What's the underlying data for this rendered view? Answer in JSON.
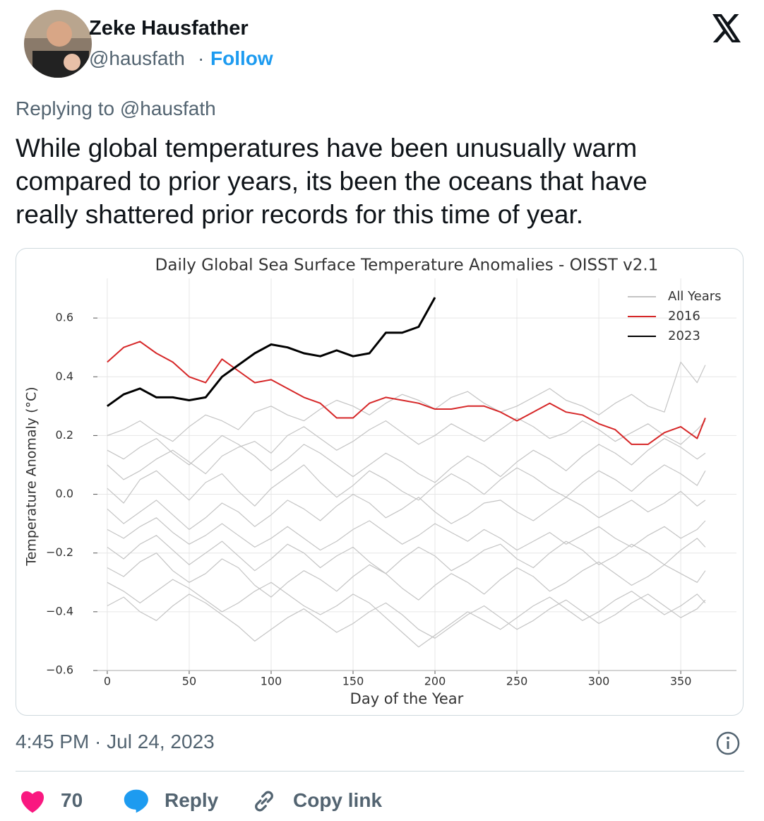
{
  "header": {
    "name": "Zeke Hausfather",
    "handle": "@hausfath",
    "separator": "·",
    "follow": "Follow"
  },
  "reply_to": "Replying to @hausfath",
  "tweet": {
    "lines": [
      "While global temperatures have been unusually warm",
      "compared to prior years, its been the oceans that have",
      "really shattered prior records for this time of year."
    ]
  },
  "chart_data": {
    "type": "line",
    "title": "Daily Global Sea Surface Temperature Anomalies - OISST v2.1",
    "x_label": "Day of the Year",
    "y_label": "Temperature Anomaly (°C)",
    "x": [
      0,
      10,
      20,
      30,
      40,
      50,
      60,
      70,
      80,
      90,
      100,
      110,
      120,
      130,
      140,
      150,
      160,
      170,
      180,
      190,
      200,
      210,
      220,
      230,
      240,
      250,
      260,
      270,
      280,
      290,
      300,
      310,
      320,
      330,
      340,
      350,
      360,
      365
    ],
    "xlim": [
      -6,
      384
    ],
    "ylim": [
      -0.6,
      0.735
    ],
    "xticks": [
      0,
      50,
      100,
      150,
      200,
      250,
      300,
      350
    ],
    "yticks": [
      {
        "value": -0.6,
        "label": "−0.6"
      },
      {
        "value": -0.4,
        "label": "−0.4"
      },
      {
        "value": -0.2,
        "label": "−0.2"
      },
      {
        "value": 0,
        "label": "0.0"
      },
      0.2,
      0.4,
      0.6
    ],
    "grid": true,
    "legend": "upper right",
    "series": [
      {
        "name": "All Years",
        "color": "#c4c4c4",
        "values": [
          [
            0.2,
            0.22,
            0.25,
            0.21,
            0.18,
            0.23,
            0.27,
            0.25,
            0.22,
            0.28,
            0.3,
            0.27,
            0.25,
            0.29,
            0.32,
            0.3,
            0.27,
            0.31,
            0.34,
            0.32,
            0.29,
            0.33,
            0.35,
            0.31,
            0.28,
            0.3,
            0.33,
            0.36,
            0.32,
            0.3,
            0.27,
            0.31,
            0.34,
            0.3,
            0.28,
            0.45,
            0.38,
            0.44
          ],
          [
            0.1,
            0.05,
            0.08,
            0.12,
            0.15,
            0.11,
            0.07,
            0.13,
            0.16,
            0.18,
            0.14,
            0.2,
            0.23,
            0.19,
            0.15,
            0.18,
            0.22,
            0.25,
            0.21,
            0.17,
            0.2,
            0.24,
            0.21,
            0.18,
            0.22,
            0.26,
            0.23,
            0.19,
            0.21,
            0.25,
            0.22,
            0.18,
            0.21,
            0.24,
            0.2,
            0.17,
            0.22,
            0.25
          ],
          [
            0.02,
            -0.03,
            0.05,
            0.08,
            0.03,
            -0.02,
            0.04,
            0.07,
            0.01,
            -0.04,
            0.02,
            0.06,
            0.1,
            0.04,
            -0.01,
            0.03,
            0.08,
            0.05,
            0.01,
            -0.02,
            0.03,
            0.07,
            0.04,
            0.0,
            0.05,
            0.09,
            0.06,
            0.02,
            -0.01,
            0.04,
            0.08,
            0.05,
            0.01,
            0.06,
            0.1,
            0.07,
            0.03,
            0.08
          ],
          [
            -0.05,
            -0.1,
            -0.06,
            -0.02,
            -0.07,
            -0.12,
            -0.08,
            -0.03,
            -0.06,
            -0.11,
            -0.07,
            -0.02,
            -0.05,
            -0.09,
            -0.04,
            0.0,
            -0.03,
            -0.08,
            -0.05,
            -0.01,
            -0.06,
            -0.1,
            -0.07,
            -0.03,
            -0.02,
            -0.06,
            -0.09,
            -0.05,
            -0.01,
            -0.04,
            -0.08,
            -0.05,
            -0.02,
            -0.06,
            -0.03,
            0.01,
            -0.04,
            -0.02
          ],
          [
            -0.18,
            -0.22,
            -0.17,
            -0.14,
            -0.19,
            -0.24,
            -0.2,
            -0.16,
            -0.21,
            -0.26,
            -0.22,
            -0.17,
            -0.2,
            -0.25,
            -0.21,
            -0.18,
            -0.23,
            -0.27,
            -0.22,
            -0.18,
            -0.21,
            -0.26,
            -0.23,
            -0.19,
            -0.17,
            -0.22,
            -0.25,
            -0.2,
            -0.16,
            -0.19,
            -0.24,
            -0.21,
            -0.17,
            -0.2,
            -0.24,
            -0.19,
            -0.15,
            -0.18
          ],
          [
            -0.25,
            -0.28,
            -0.23,
            -0.2,
            -0.26,
            -0.3,
            -0.27,
            -0.22,
            -0.25,
            -0.31,
            -0.35,
            -0.3,
            -0.26,
            -0.29,
            -0.33,
            -0.28,
            -0.24,
            -0.27,
            -0.32,
            -0.36,
            -0.31,
            -0.27,
            -0.3,
            -0.34,
            -0.29,
            -0.25,
            -0.28,
            -0.33,
            -0.3,
            -0.26,
            -0.23,
            -0.27,
            -0.31,
            -0.28,
            -0.24,
            -0.27,
            -0.3,
            -0.26
          ],
          [
            -0.38,
            -0.35,
            -0.4,
            -0.43,
            -0.38,
            -0.34,
            -0.37,
            -0.41,
            -0.45,
            -0.5,
            -0.46,
            -0.42,
            -0.39,
            -0.43,
            -0.47,
            -0.44,
            -0.4,
            -0.37,
            -0.41,
            -0.46,
            -0.49,
            -0.45,
            -0.41,
            -0.38,
            -0.42,
            -0.46,
            -0.43,
            -0.39,
            -0.36,
            -0.4,
            -0.44,
            -0.41,
            -0.37,
            -0.34,
            -0.38,
            -0.42,
            -0.39,
            -0.36
          ],
          [
            -0.3,
            -0.33,
            -0.37,
            -0.33,
            -0.29,
            -0.32,
            -0.36,
            -0.4,
            -0.37,
            -0.33,
            -0.3,
            -0.34,
            -0.38,
            -0.41,
            -0.38,
            -0.34,
            -0.37,
            -0.42,
            -0.47,
            -0.52,
            -0.48,
            -0.44,
            -0.4,
            -0.43,
            -0.46,
            -0.42,
            -0.38,
            -0.35,
            -0.39,
            -0.43,
            -0.4,
            -0.36,
            -0.33,
            -0.37,
            -0.41,
            -0.38,
            -0.34,
            -0.37
          ],
          [
            0.15,
            0.12,
            0.16,
            0.19,
            0.14,
            0.1,
            0.15,
            0.2,
            0.17,
            0.13,
            0.08,
            0.12,
            0.17,
            0.14,
            0.1,
            0.06,
            0.1,
            0.14,
            0.11,
            0.07,
            0.04,
            0.09,
            0.13,
            0.1,
            0.06,
            0.11,
            0.15,
            0.12,
            0.08,
            0.13,
            0.17,
            0.14,
            0.1,
            0.15,
            0.19,
            0.16,
            0.12,
            0.14
          ],
          [
            -0.12,
            -0.15,
            -0.11,
            -0.08,
            -0.13,
            -0.17,
            -0.14,
            -0.1,
            -0.14,
            -0.18,
            -0.15,
            -0.11,
            -0.15,
            -0.19,
            -0.16,
            -0.12,
            -0.09,
            -0.13,
            -0.17,
            -0.14,
            -0.1,
            -0.13,
            -0.16,
            -0.12,
            -0.15,
            -0.19,
            -0.16,
            -0.13,
            -0.17,
            -0.14,
            -0.11,
            -0.15,
            -0.18,
            -0.14,
            -0.11,
            -0.15,
            -0.12,
            -0.09
          ]
        ]
      },
      {
        "name": "2016",
        "color": "#d62728",
        "values": [
          0.45,
          0.5,
          0.52,
          0.48,
          0.45,
          0.4,
          0.38,
          0.46,
          0.42,
          0.38,
          0.39,
          0.36,
          0.33,
          0.31,
          0.26,
          0.26,
          0.31,
          0.33,
          0.32,
          0.31,
          0.29,
          0.29,
          0.3,
          0.3,
          0.28,
          0.25,
          0.28,
          0.31,
          0.28,
          0.27,
          0.24,
          0.22,
          0.17,
          0.17,
          0.21,
          0.23,
          0.19,
          0.26
        ]
      },
      {
        "name": "2023",
        "color": "#000000",
        "values": [
          0.3,
          0.34,
          0.36,
          0.33,
          0.33,
          0.32,
          0.33,
          0.4,
          0.44,
          0.48,
          0.51,
          0.5,
          0.48,
          0.47,
          0.49,
          0.47,
          0.48,
          0.55,
          0.55,
          0.57,
          0.67,
          null,
          null,
          null,
          null,
          null,
          null,
          null,
          null,
          null,
          null,
          null,
          null,
          null,
          null,
          null,
          null,
          null
        ]
      }
    ]
  },
  "footer": {
    "timestamp": "4:45 PM · Jul 24, 2023",
    "likes": 70,
    "reply": "Reply",
    "copy_link": "Copy link"
  }
}
